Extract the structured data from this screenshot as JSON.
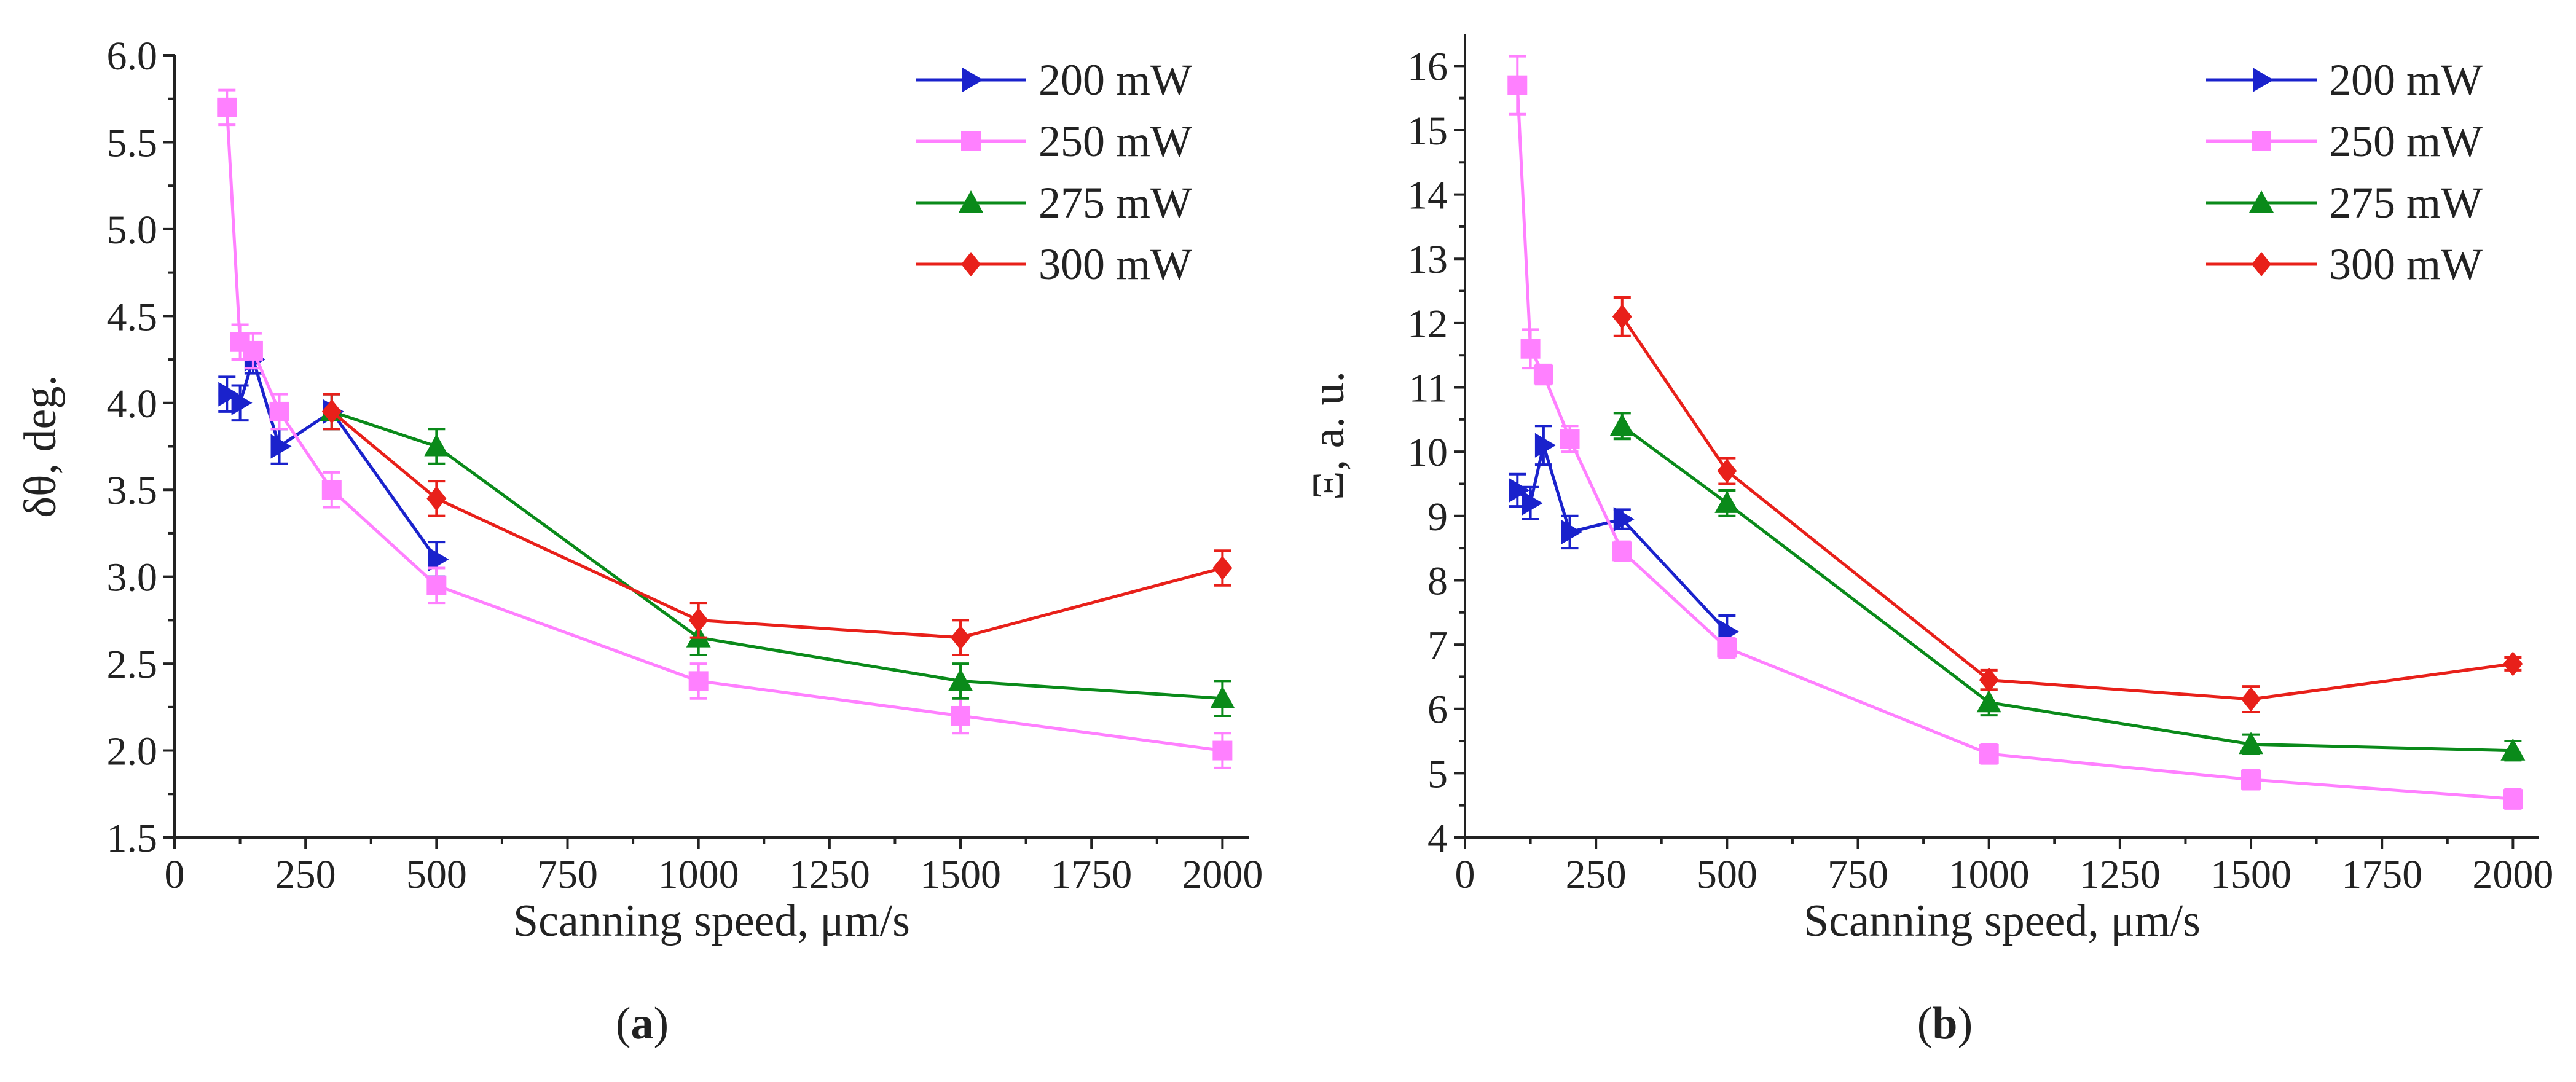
{
  "chart_data": [
    {
      "type": "line",
      "panel_label": "a",
      "xlabel": "Scanning speed, μm/s",
      "ylabel": "δθ, deg.",
      "xlim": [
        0,
        2050
      ],
      "ylim": [
        1.5,
        6.0
      ],
      "xticks": [
        0,
        250,
        500,
        750,
        1000,
        1250,
        1500,
        1750,
        2000
      ],
      "yticks": [
        1.5,
        2.0,
        2.5,
        3.0,
        3.5,
        4.0,
        4.5,
        5.0,
        5.5,
        6.0
      ],
      "ytick_labels": [
        "1.5",
        "2.0",
        "2.5",
        "3.0",
        "3.5",
        "4.0",
        "4.5",
        "5.0",
        "5.5",
        "6.0"
      ],
      "legend_position": "top-right",
      "series": [
        {
          "name": "200 mW",
          "color": "#1a22cc",
          "marker": "triangle-right",
          "x": [
            100,
            125,
            150,
            200,
            300,
            500
          ],
          "y": [
            4.05,
            4.0,
            4.25,
            3.75,
            3.95,
            3.1
          ],
          "err": [
            0.1,
            0.1,
            0.08,
            0.1,
            0.1,
            0.1
          ]
        },
        {
          "name": "250 mW",
          "color": "#ff80ff",
          "marker": "square",
          "x": [
            100,
            125,
            150,
            200,
            300,
            500,
            1000,
            1500,
            2000
          ],
          "y": [
            5.7,
            4.35,
            4.3,
            3.95,
            3.5,
            2.95,
            2.4,
            2.2,
            2.0
          ],
          "err": [
            0.1,
            0.1,
            0.1,
            0.1,
            0.1,
            0.1,
            0.1,
            0.1,
            0.1
          ]
        },
        {
          "name": "275 mW",
          "color": "#0a8a1a",
          "marker": "triangle-up",
          "x": [
            300,
            500,
            1000,
            1500,
            2000
          ],
          "y": [
            3.95,
            3.75,
            2.65,
            2.4,
            2.3
          ],
          "err": [
            0.1,
            0.1,
            0.1,
            0.1,
            0.1
          ]
        },
        {
          "name": "300 mW",
          "color": "#e8201a",
          "marker": "diamond",
          "x": [
            300,
            500,
            1000,
            1500,
            2000
          ],
          "y": [
            3.95,
            3.45,
            2.75,
            2.65,
            3.05
          ],
          "err": [
            0.1,
            0.1,
            0.1,
            0.1,
            0.1
          ]
        }
      ]
    },
    {
      "type": "line",
      "panel_label": "b",
      "xlabel": "Scanning speed, μm/s",
      "ylabel": "Ξ, a. u.",
      "xlim": [
        0,
        2050
      ],
      "ylim": [
        4,
        16.5
      ],
      "xticks": [
        0,
        250,
        500,
        750,
        1000,
        1250,
        1500,
        1750,
        2000
      ],
      "yticks": [
        4,
        5,
        6,
        7,
        8,
        9,
        10,
        11,
        12,
        13,
        14,
        15,
        16
      ],
      "ytick_labels": [
        "4",
        "5",
        "6",
        "7",
        "8",
        "9",
        "10",
        "11",
        "12",
        "13",
        "14",
        "15",
        "16"
      ],
      "legend_position": "top-right",
      "series": [
        {
          "name": "200 mW",
          "color": "#1a22cc",
          "marker": "triangle-right",
          "x": [
            100,
            125,
            150,
            200,
            300,
            500
          ],
          "y": [
            9.4,
            9.2,
            10.1,
            8.75,
            8.95,
            7.2
          ],
          "err": [
            0.25,
            0.25,
            0.3,
            0.25,
            0.15,
            0.25
          ]
        },
        {
          "name": "250 mW",
          "color": "#ff80ff",
          "marker": "square",
          "x": [
            100,
            125,
            150,
            200,
            300,
            500,
            1000,
            1500,
            2000
          ],
          "y": [
            15.7,
            11.6,
            11.2,
            10.2,
            8.45,
            6.95,
            5.3,
            4.9,
            4.6
          ],
          "err": [
            0.45,
            0.3,
            0.15,
            0.2,
            0.15,
            0.15,
            0.15,
            0.15,
            0.15
          ]
        },
        {
          "name": "275 mW",
          "color": "#0a8a1a",
          "marker": "triangle-up",
          "x": [
            300,
            500,
            1000,
            1500,
            2000
          ],
          "y": [
            10.4,
            9.2,
            6.1,
            5.45,
            5.35
          ],
          "err": [
            0.2,
            0.2,
            0.2,
            0.15,
            0.15
          ]
        },
        {
          "name": "300 mW",
          "color": "#e8201a",
          "marker": "diamond",
          "x": [
            300,
            500,
            1000,
            1500,
            2000
          ],
          "y": [
            12.1,
            9.7,
            6.45,
            6.15,
            6.7
          ],
          "err": [
            0.3,
            0.2,
            0.15,
            0.2,
            0.1
          ]
        }
      ]
    }
  ]
}
